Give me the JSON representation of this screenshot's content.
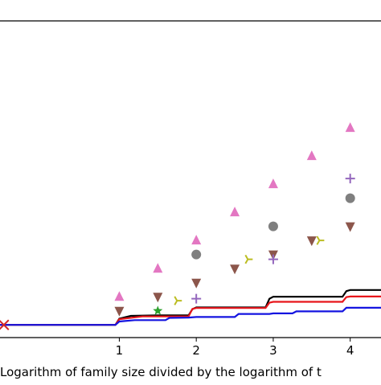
{
  "chart_data": {
    "type": "line",
    "title": "",
    "xlabel": "Logarithm of family size divided by the logarithm of t",
    "ylabel": "",
    "xlim": [
      -0.55,
      4.4
    ],
    "ylim": [
      -0.45,
      10.8
    ],
    "x_ticks": [
      1,
      2,
      3,
      4
    ],
    "x_tick_labels": [
      "1",
      "2",
      "3",
      "4"
    ],
    "grid": false,
    "step_series": [
      {
        "color": "#000000",
        "points": [
          [
            -0.55,
            0
          ],
          [
            0.95,
            0
          ],
          [
            1.0,
            0.22
          ],
          [
            1.15,
            0.32
          ],
          [
            1.5,
            0.34
          ],
          [
            1.9,
            0.34
          ],
          [
            1.95,
            0.56
          ],
          [
            2.0,
            0.62
          ],
          [
            2.9,
            0.62
          ],
          [
            2.95,
            0.93
          ],
          [
            3.0,
            1.0
          ],
          [
            3.9,
            1.0
          ],
          [
            3.95,
            1.2
          ],
          [
            4.0,
            1.24
          ],
          [
            4.4,
            1.24
          ]
        ]
      },
      {
        "color": "#e8161b",
        "points": [
          [
            -0.55,
            0
          ],
          [
            0.95,
            0
          ],
          [
            1.0,
            0.2
          ],
          [
            1.3,
            0.3
          ],
          [
            1.9,
            0.3
          ],
          [
            1.95,
            0.57
          ],
          [
            2.0,
            0.6
          ],
          [
            2.9,
            0.6
          ],
          [
            2.95,
            0.79
          ],
          [
            3.0,
            0.82
          ],
          [
            3.9,
            0.82
          ],
          [
            3.95,
            0.99
          ],
          [
            4.0,
            1.01
          ],
          [
            4.4,
            1.01
          ]
        ]
      },
      {
        "color": "#1414e0",
        "points": [
          [
            -0.55,
            0
          ],
          [
            0.95,
            0
          ],
          [
            1.0,
            0.12
          ],
          [
            1.2,
            0.17
          ],
          [
            1.6,
            0.17
          ],
          [
            1.65,
            0.25
          ],
          [
            1.9,
            0.26
          ],
          [
            2.0,
            0.28
          ],
          [
            2.5,
            0.28
          ],
          [
            2.55,
            0.39
          ],
          [
            2.95,
            0.39
          ],
          [
            3.0,
            0.41
          ],
          [
            3.25,
            0.41
          ],
          [
            3.3,
            0.48
          ],
          [
            3.9,
            0.48
          ],
          [
            3.95,
            0.61
          ],
          [
            4.4,
            0.61
          ]
        ]
      }
    ],
    "scatter_series": [
      {
        "color": "#e377c2",
        "marker": "triangle-up",
        "points": [
          [
            1.0,
            1.0
          ],
          [
            1.5,
            2.0
          ],
          [
            2.0,
            3.0
          ],
          [
            2.5,
            4.0
          ],
          [
            3.0,
            5.0
          ],
          [
            3.5,
            6.0
          ],
          [
            4.0,
            7.0
          ]
        ]
      },
      {
        "color": "#7f7f7f",
        "marker": "circle",
        "points": [
          [
            2.0,
            2.5
          ],
          [
            3.0,
            3.5
          ],
          [
            4.0,
            4.5
          ]
        ]
      },
      {
        "color": "#8c564b",
        "marker": "triangle-down",
        "points": [
          [
            1.0,
            0.5
          ],
          [
            1.5,
            1.0
          ],
          [
            2.0,
            1.5
          ],
          [
            2.5,
            2.0
          ],
          [
            3.0,
            2.5
          ],
          [
            3.5,
            3.0
          ],
          [
            4.0,
            3.5
          ]
        ]
      },
      {
        "color": "#9467bd",
        "marker": "plus",
        "points": [
          [
            2.0,
            0.93
          ],
          [
            3.0,
            2.33
          ],
          [
            4.0,
            5.2
          ]
        ]
      },
      {
        "color": "#bcbd22",
        "marker": "tri-right",
        "points": [
          [
            1.75,
            0.86
          ],
          [
            2.67,
            2.33
          ],
          [
            3.6,
            3.0
          ]
        ]
      },
      {
        "color": "#2ca02c",
        "marker": "star",
        "points": [
          [
            1.5,
            0.5
          ]
        ]
      },
      {
        "color": "#d62728",
        "marker": "x",
        "points": [
          [
            -0.5,
            0.0
          ]
        ]
      }
    ]
  }
}
